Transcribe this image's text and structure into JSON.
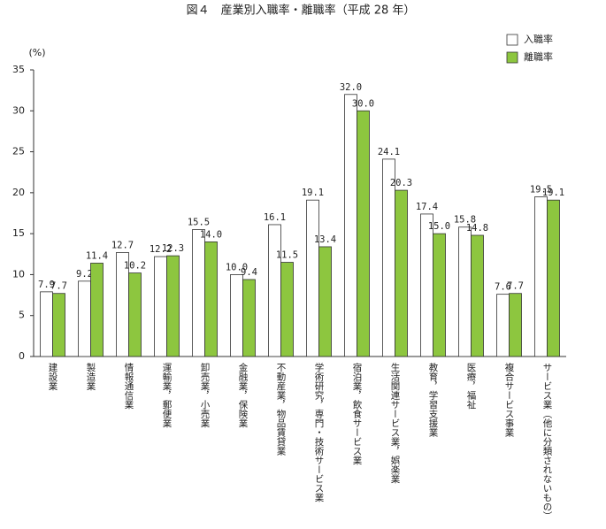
{
  "chart_data": {
    "type": "bar",
    "title": "図４　産業別入職率・離職率（平成 28 年）",
    "y_unit": "(%)",
    "categories": [
      "建設業",
      "製造業",
      "情報通信業",
      "運輸業，郵便業",
      "卸売業，小売業",
      "金融業，保険業",
      "不動産業，物品賃貸業",
      "学術研究，専門・技術サービス業",
      "宿泊業，飲食サービス業",
      "生活関連サービス業，娯楽業",
      "教育，学習支援業",
      "医療，福祉",
      "複合サービス事業",
      "サービス業（他に分類されないもの）"
    ],
    "series": [
      {
        "name": "入職率",
        "color": "#ffffff",
        "values": [
          7.9,
          9.2,
          12.7,
          12.2,
          15.5,
          10.0,
          16.1,
          19.1,
          32.0,
          24.1,
          17.4,
          15.8,
          7.6,
          19.5
        ],
        "value_labels": [
          "7.9",
          "9.2",
          "12.7",
          "12.2",
          "15.5",
          "10.0",
          "16.1",
          "19.1",
          "32.0",
          "24.1",
          "17.4",
          "15.8",
          "7.6",
          "19.5"
        ]
      },
      {
        "name": "離職率",
        "color": "#8dc63f",
        "values": [
          7.7,
          11.4,
          10.2,
          12.3,
          14.0,
          9.4,
          11.5,
          13.4,
          30.0,
          20.3,
          15.0,
          14.8,
          7.7,
          19.1
        ],
        "value_labels": [
          "7.7",
          "11.4",
          "10.2",
          "12.3",
          "14.0",
          "9.4",
          "11.5",
          "13.4",
          "30.0",
          "20.3",
          "15.0",
          "14.8",
          "7.7",
          "19.1"
        ]
      }
    ],
    "ylim": [
      0,
      35
    ],
    "yticks": [
      0,
      5,
      10,
      15,
      20,
      25,
      30,
      35
    ],
    "grid": false,
    "legend": "top-right"
  }
}
